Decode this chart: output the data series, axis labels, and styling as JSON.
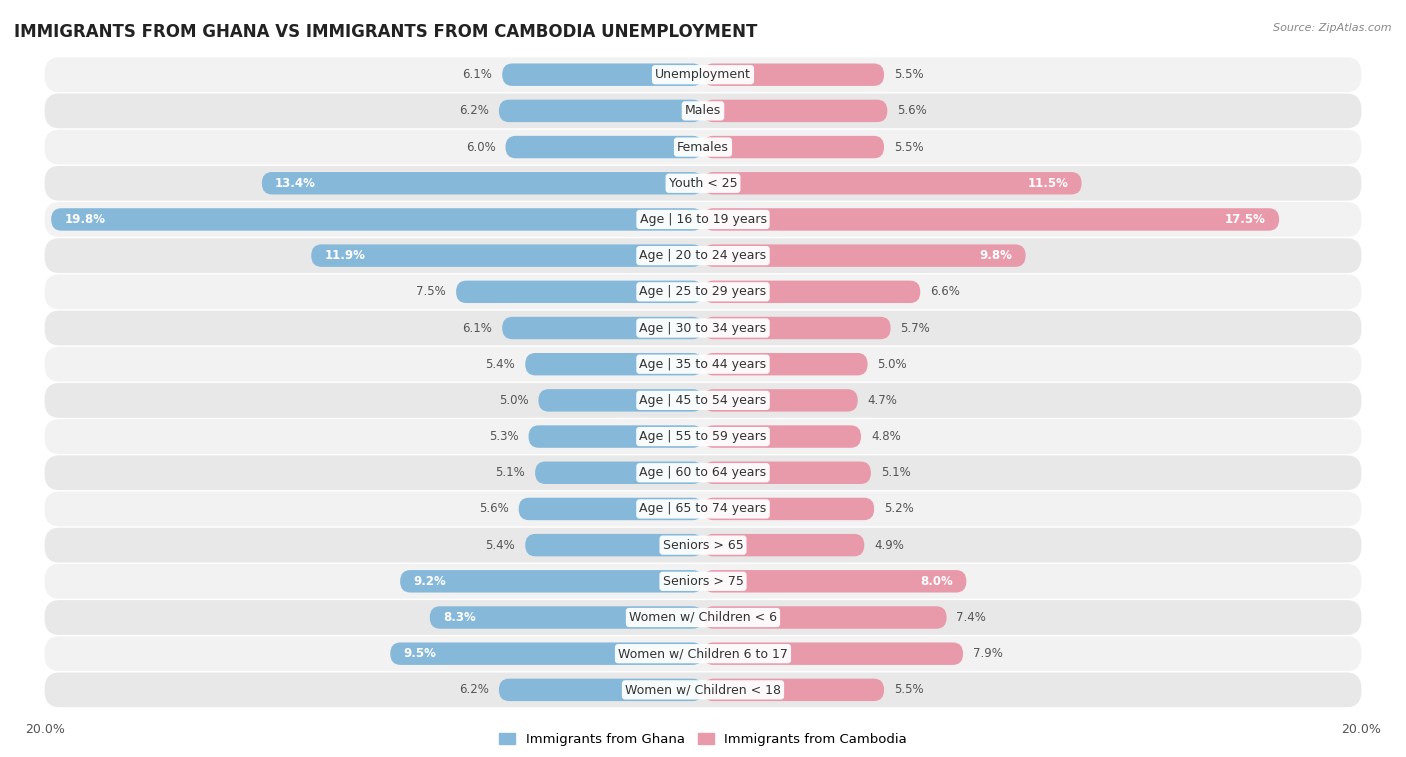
{
  "title": "IMMIGRANTS FROM GHANA VS IMMIGRANTS FROM CAMBODIA UNEMPLOYMENT",
  "source": "Source: ZipAtlas.com",
  "categories": [
    "Unemployment",
    "Males",
    "Females",
    "Youth < 25",
    "Age | 16 to 19 years",
    "Age | 20 to 24 years",
    "Age | 25 to 29 years",
    "Age | 30 to 34 years",
    "Age | 35 to 44 years",
    "Age | 45 to 54 years",
    "Age | 55 to 59 years",
    "Age | 60 to 64 years",
    "Age | 65 to 74 years",
    "Seniors > 65",
    "Seniors > 75",
    "Women w/ Children < 6",
    "Women w/ Children 6 to 17",
    "Women w/ Children < 18"
  ],
  "ghana_values": [
    6.1,
    6.2,
    6.0,
    13.4,
    19.8,
    11.9,
    7.5,
    6.1,
    5.4,
    5.0,
    5.3,
    5.1,
    5.6,
    5.4,
    9.2,
    8.3,
    9.5,
    6.2
  ],
  "cambodia_values": [
    5.5,
    5.6,
    5.5,
    11.5,
    17.5,
    9.8,
    6.6,
    5.7,
    5.0,
    4.7,
    4.8,
    5.1,
    5.2,
    4.9,
    8.0,
    7.4,
    7.9,
    5.5
  ],
  "ghana_color": "#85b8d9",
  "cambodia_color": "#e899aa",
  "row_bg_light": "#f2f2f2",
  "row_bg_dark": "#e8e8e8",
  "fig_bg": "#ffffff",
  "axis_max": 20.0,
  "legend_ghana": "Immigrants from Ghana",
  "legend_cambodia": "Immigrants from Cambodia",
  "title_fontsize": 12,
  "label_fontsize": 9,
  "value_fontsize": 8.5,
  "bar_height": 0.62
}
